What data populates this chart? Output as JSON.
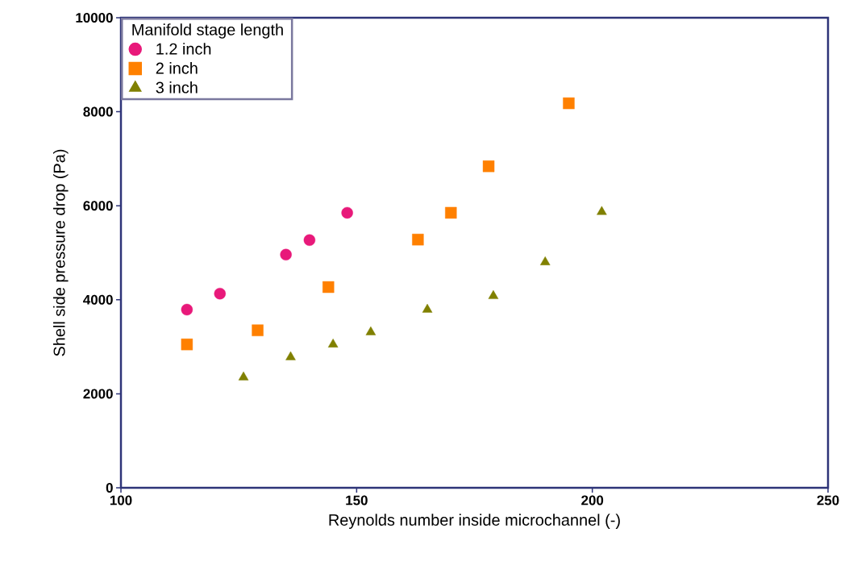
{
  "chart_data": {
    "type": "scatter",
    "xlabel": "Reynolds number inside microchannel (-)",
    "ylabel": "Shell side pressure drop (Pa)",
    "legend_title": "Manifold stage length",
    "xlim": [
      100,
      250
    ],
    "xticks": [
      100,
      150,
      200,
      250
    ],
    "ylim": [
      0,
      10000
    ],
    "yticks": [
      0,
      2000,
      4000,
      6000,
      8000,
      10000
    ],
    "grid": false,
    "legend": "top left",
    "series": [
      {
        "name": "1.2 inch",
        "color": "#e8197a",
        "marker": "circle",
        "x": [
          114,
          121,
          135,
          140,
          148
        ],
        "values": [
          3790,
          4130,
          4960,
          5270,
          5850
        ]
      },
      {
        "name": "2 inch",
        "color": "#ff8000",
        "marker": "square",
        "x": [
          114,
          129,
          144,
          163,
          170,
          178,
          195
        ],
        "values": [
          3050,
          3350,
          4270,
          5280,
          5850,
          6840,
          8180
        ]
      },
      {
        "name": "3 inch",
        "color": "#808000",
        "marker": "triangle",
        "x": [
          126,
          136,
          145,
          153,
          165,
          179,
          190,
          202
        ],
        "values": [
          2350,
          2780,
          3050,
          3310,
          3790,
          4080,
          4800,
          5870
        ]
      }
    ]
  }
}
